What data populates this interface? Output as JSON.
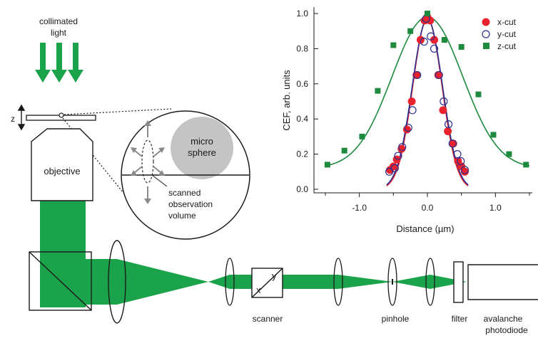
{
  "colors": {
    "beam_green": "#1aa34a",
    "x_cut": "#e8232d",
    "y_cut": "#2b2f8f",
    "z_cut": "#1d8a3e",
    "sphere_gray": "#c4c4c4",
    "arrow_gray": "#8a8a8a"
  },
  "labels": {
    "collimated_line1": "collimated",
    "collimated_line2": "light",
    "z_axis": "z",
    "objective": "objective",
    "sphere_line1": "micro",
    "sphere_line2": "sphere",
    "scanned_line1": "scanned",
    "scanned_line2": "observation",
    "scanned_line3": "volume",
    "scanner_x": "x",
    "scanner_y": "y",
    "scanner": "scanner",
    "pinhole": "pinhole",
    "filter": "filter",
    "apd_line1": "avalanche",
    "apd_line2": "photodiode"
  },
  "chart_data": {
    "type": "scatter",
    "xlabel": "Distance (µm)",
    "ylabel": "CEF, arb. units",
    "xlim": [
      -1.5,
      1.5
    ],
    "ylim": [
      -0.02,
      1.02
    ],
    "x_ticks": [
      -1.0,
      0.0,
      1.0
    ],
    "x_tick_labels": [
      "-1.0",
      "0.0",
      "1.0"
    ],
    "x_minor_ticks": [
      -1.5,
      -0.5,
      0.5,
      1.5
    ],
    "y_ticks": [
      0.0,
      0.2,
      0.4,
      0.6,
      0.8,
      1.0
    ],
    "y_tick_labels": [
      "0.0",
      "0.2",
      "0.4",
      "0.6",
      "0.8",
      "1.0"
    ],
    "grid": false,
    "legend_position": "top-right",
    "series": [
      {
        "name": "x-cut",
        "marker": "filled-circle",
        "color": "#e8232d",
        "x": [
          -0.55,
          -0.5,
          -0.45,
          -0.38,
          -0.3,
          -0.23,
          -0.16,
          -0.1,
          -0.04,
          0.0,
          0.04,
          0.1,
          0.16,
          0.23,
          0.3,
          0.38,
          0.45,
          0.5,
          0.55
        ],
        "y": [
          0.11,
          0.13,
          0.17,
          0.23,
          0.34,
          0.5,
          0.65,
          0.85,
          0.96,
          0.98,
          0.96,
          0.85,
          0.65,
          0.45,
          0.33,
          0.26,
          0.16,
          0.13,
          0.1
        ]
      },
      {
        "name": "y-cut",
        "marker": "open-circle",
        "color": "#2b2f8f",
        "x": [
          -0.56,
          -0.48,
          -0.43,
          -0.37,
          -0.28,
          -0.22,
          -0.15,
          -0.05,
          -0.02,
          0.05,
          0.1,
          0.17,
          0.24,
          0.31,
          0.37,
          0.44,
          0.49,
          0.55
        ],
        "y": [
          0.1,
          0.12,
          0.19,
          0.24,
          0.35,
          0.45,
          0.65,
          0.84,
          0.97,
          0.87,
          0.8,
          0.65,
          0.5,
          0.37,
          0.26,
          0.2,
          0.16,
          0.11
        ]
      },
      {
        "name": "z-cut",
        "marker": "filled-square",
        "color": "#1d8a3e",
        "x": [
          -1.47,
          -1.22,
          -0.96,
          -0.73,
          -0.5,
          -0.25,
          0.0,
          0.25,
          0.5,
          0.75,
          0.97,
          1.2,
          1.45
        ],
        "y": [
          0.14,
          0.22,
          0.3,
          0.56,
          0.82,
          0.9,
          1.0,
          0.85,
          0.81,
          0.54,
          0.31,
          0.2,
          0.14
        ]
      }
    ],
    "fits": [
      {
        "series": "x-cut",
        "color": "#e8232d",
        "center": 0.0,
        "sigma": 0.215,
        "amplitude": 0.97,
        "offset": 0.0
      },
      {
        "series": "y-cut",
        "color": "#2b2f8f",
        "center": 0.0,
        "sigma": 0.222,
        "amplitude": 0.97,
        "offset": 0.0
      },
      {
        "series": "z-cut",
        "color": "#1d8a3e",
        "center": 0.0,
        "sigma": 0.52,
        "amplitude": 0.86,
        "offset": 0.12
      }
    ]
  }
}
